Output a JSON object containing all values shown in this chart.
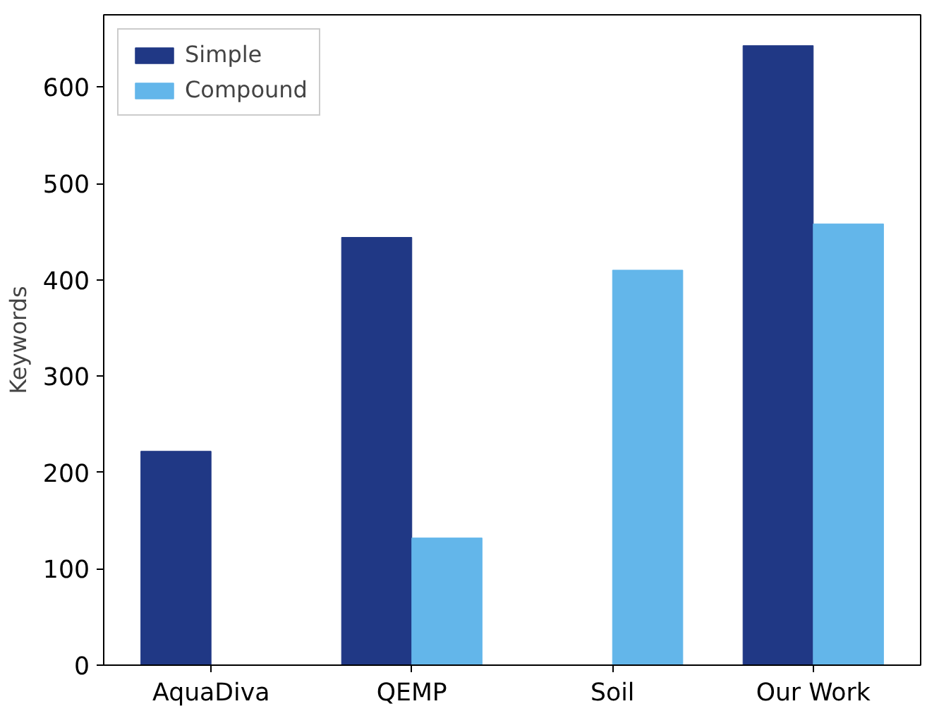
{
  "chart_data": {
    "type": "bar",
    "ylabel": "Keywords",
    "categories": [
      "AquaDiva",
      "QEMP",
      "Soil",
      "Our Work"
    ],
    "series": [
      {
        "name": "Simple",
        "color": "#203885",
        "values": [
          222,
          444,
          0,
          643
        ]
      },
      {
        "name": "Compound",
        "color": "#63b6ea",
        "values": [
          0,
          132,
          410,
          458
        ]
      }
    ],
    "ylim": [
      0,
      675
    ],
    "yticks": [
      0,
      100,
      200,
      300,
      400,
      500,
      600
    ],
    "grid": false,
    "legend": "top left"
  }
}
